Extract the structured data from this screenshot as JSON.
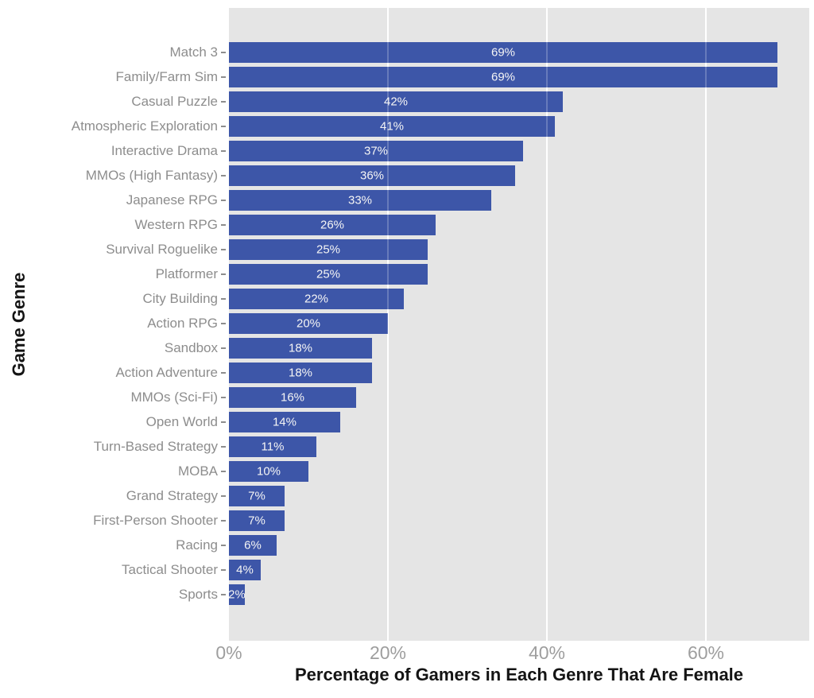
{
  "chart_data": {
    "type": "bar",
    "orientation": "horizontal",
    "title": "",
    "xlabel": "Percentage of Gamers in Each Genre That Are Female",
    "ylabel": "Game Genre",
    "categories": [
      "Match 3",
      "Family/Farm Sim",
      "Casual Puzzle",
      "Atmospheric Exploration",
      "Interactive Drama",
      "MMOs (High Fantasy)",
      "Japanese RPG",
      "Western RPG",
      "Survival Roguelike",
      "Platformer",
      "City Building",
      "Action RPG",
      "Sandbox",
      "Action Adventure",
      "MMOs (Sci-Fi)",
      "Open World",
      "Turn-Based Strategy",
      "MOBA",
      "Grand Strategy",
      "First-Person Shooter",
      "Racing",
      "Tactical Shooter",
      "Sports"
    ],
    "values": [
      69,
      69,
      42,
      41,
      37,
      36,
      33,
      26,
      25,
      25,
      22,
      20,
      18,
      18,
      16,
      14,
      11,
      10,
      7,
      7,
      6,
      4,
      2
    ],
    "bar_labels": [
      "69%",
      "69%",
      "42%",
      "41%",
      "37%",
      "36%",
      "33%",
      "26%",
      "25%",
      "25%",
      "22%",
      "20%",
      "18%",
      "18%",
      "16%",
      "14%",
      "11%",
      "10%",
      "7%",
      "7%",
      "6%",
      "4%",
      "2%"
    ],
    "xlim": [
      0,
      73
    ],
    "xticks": [
      {
        "value": 0,
        "label": "0%"
      },
      {
        "value": 20,
        "label": "20%"
      },
      {
        "value": 40,
        "label": "40%"
      },
      {
        "value": 60,
        "label": "60%"
      }
    ],
    "gridlines": [
      20,
      40,
      60
    ],
    "grid": "major-x-only",
    "legend": "none",
    "colors": {
      "bar": "#3D56A8",
      "panel_background": "#E5E5E5",
      "figure_background": "#FFFFFF",
      "gridline": "#FFFFFF",
      "axis_text": "#8D8D8D",
      "x_tick_text": "#9E9E9E",
      "bar_label_text": "#F5F5F5",
      "axis_title": "#141414"
    }
  }
}
